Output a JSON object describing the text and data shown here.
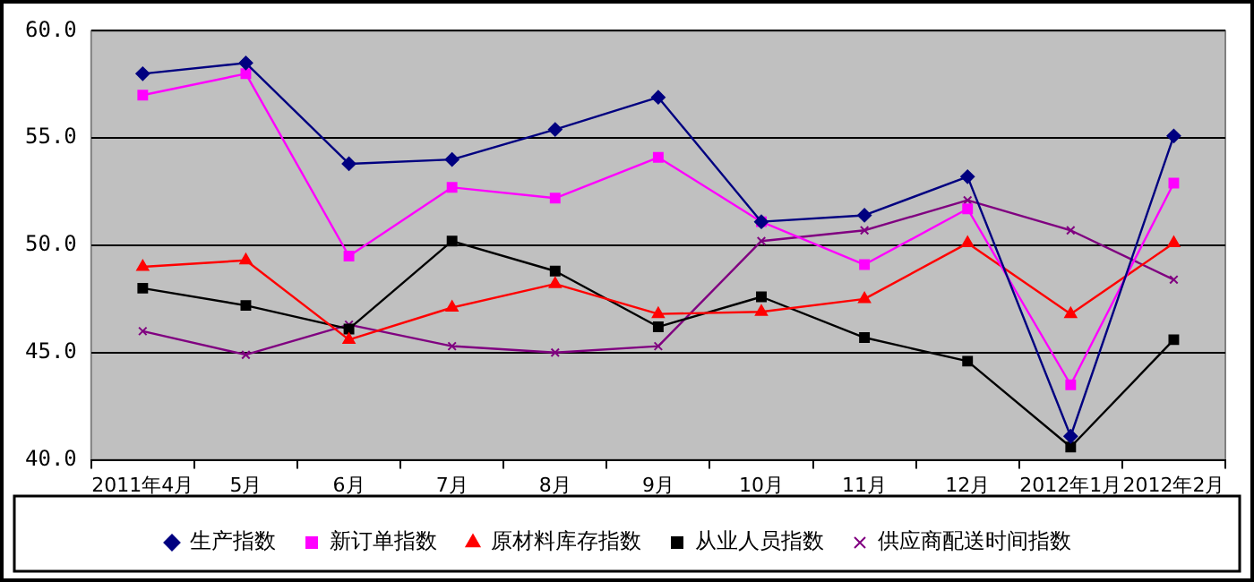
{
  "chart_data": {
    "type": "line",
    "categories": [
      "2011年4月",
      "5月",
      "6月",
      "7月",
      "8月",
      "9月",
      "10月",
      "11月",
      "12月",
      "2012年1月",
      "2012年2月"
    ],
    "series": [
      {
        "name": "生产指数",
        "color": "#000080",
        "marker": "diamond",
        "values": [
          58.0,
          58.5,
          53.8,
          54.0,
          55.4,
          56.9,
          51.1,
          51.4,
          53.2,
          41.1,
          55.1
        ]
      },
      {
        "name": "新订单指数",
        "color": "#ff00ff",
        "marker": "square",
        "values": [
          57.0,
          58.0,
          49.5,
          52.7,
          52.2,
          54.1,
          51.1,
          49.1,
          51.7,
          43.5,
          52.9
        ]
      },
      {
        "name": "原材料库存指数",
        "color": "#ff0000",
        "marker": "triangle",
        "values": [
          49.0,
          49.3,
          45.6,
          47.1,
          48.2,
          46.8,
          46.9,
          47.5,
          50.1,
          46.8,
          50.1
        ]
      },
      {
        "name": "从业人员指数",
        "color": "#000000",
        "marker": "square",
        "values": [
          48.0,
          47.2,
          46.1,
          50.2,
          48.8,
          46.2,
          47.6,
          45.7,
          44.6,
          40.6,
          45.6
        ]
      },
      {
        "name": "供应商配送时间指数",
        "color": "#800080",
        "marker": "cross",
        "values": [
          46.0,
          44.9,
          46.3,
          45.3,
          45.0,
          45.3,
          50.2,
          50.7,
          52.1,
          50.7,
          48.4
        ]
      }
    ],
    "ylim": [
      40,
      60
    ],
    "yticks": [
      {
        "value": 40,
        "label": "40.0"
      },
      {
        "value": 45,
        "label": "45.0"
      },
      {
        "value": 50,
        "label": "50.0"
      },
      {
        "value": 55,
        "label": "55.0"
      },
      {
        "value": 60,
        "label": "60.0"
      }
    ],
    "grid": "y",
    "legend": "bottom",
    "line_style": "solid"
  }
}
